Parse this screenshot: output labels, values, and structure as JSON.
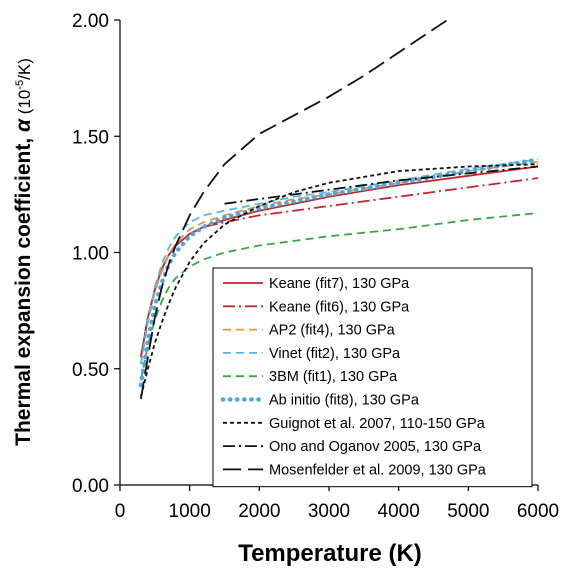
{
  "chart_data": {
    "type": "line",
    "xlabel": "Temperature (K)",
    "ylabel_main": "Thermal expansion coefficient, ",
    "ylabel_alpha": "α",
    "ylabel_unit_prefix": " (10",
    "ylabel_unit_exp": "-5",
    "ylabel_unit_suffix": "/K)",
    "xlim": [
      0,
      6000
    ],
    "ylim": [
      0.0,
      2.0
    ],
    "xticks": [
      0,
      1000,
      2000,
      3000,
      4000,
      5000,
      6000
    ],
    "xtick_labels": [
      "0",
      "1000",
      "2000",
      "3000",
      "4000",
      "5000",
      "6000"
    ],
    "yticks": [
      0.0,
      0.5,
      1.0,
      1.5,
      2.0
    ],
    "ytick_labels": [
      "0.00",
      "0.50",
      "1.00",
      "1.50",
      "2.00"
    ],
    "grid": false,
    "legend_position": "bottom-right",
    "series": [
      {
        "name": "Keane (fit7), 130 GPa",
        "color": "#c0282d",
        "style": "solid",
        "x": [
          300,
          400,
          500,
          600,
          700,
          800,
          1000,
          1200,
          1500,
          2000,
          2500,
          3000,
          4000,
          5000,
          6000
        ],
        "y": [
          0.55,
          0.72,
          0.84,
          0.93,
          0.99,
          1.03,
          1.08,
          1.11,
          1.14,
          1.18,
          1.21,
          1.24,
          1.29,
          1.33,
          1.37
        ]
      },
      {
        "name": "Keane (fit6), 130 GPa",
        "color": "#c0282d",
        "style": "dashdot",
        "x": [
          300,
          400,
          500,
          600,
          700,
          800,
          1000,
          1200,
          1500,
          2000,
          2500,
          3000,
          4000,
          5000,
          6000
        ],
        "y": [
          0.55,
          0.72,
          0.84,
          0.93,
          0.99,
          1.03,
          1.08,
          1.11,
          1.13,
          1.16,
          1.18,
          1.2,
          1.24,
          1.28,
          1.32
        ]
      },
      {
        "name": "AP2 (fit4), 130 GPa",
        "color": "#f0913a",
        "style": "dashed",
        "x": [
          300,
          400,
          500,
          600,
          700,
          800,
          1000,
          1200,
          1500,
          2000,
          2500,
          3000,
          4000,
          5000,
          6000
        ],
        "y": [
          0.52,
          0.7,
          0.83,
          0.92,
          0.99,
          1.04,
          1.1,
          1.13,
          1.16,
          1.2,
          1.23,
          1.25,
          1.3,
          1.35,
          1.39
        ]
      },
      {
        "name": "Vinet (fit2), 130 GPa",
        "color": "#58b6e7",
        "style": "dashed",
        "x": [
          300,
          400,
          500,
          600,
          700,
          800,
          1000,
          1200,
          1500,
          2000,
          2500,
          3000,
          4000,
          5000,
          6000
        ],
        "y": [
          0.52,
          0.71,
          0.85,
          0.95,
          1.02,
          1.07,
          1.13,
          1.16,
          1.18,
          1.21,
          1.24,
          1.26,
          1.31,
          1.36,
          1.4
        ]
      },
      {
        "name": "3BM (fit1), 130 GPa",
        "color": "#3aa648",
        "style": "dashed",
        "x": [
          300,
          400,
          500,
          600,
          700,
          800,
          1000,
          1200,
          1500,
          2000,
          2500,
          3000,
          4000,
          5000,
          6000
        ],
        "y": [
          0.45,
          0.6,
          0.71,
          0.79,
          0.85,
          0.89,
          0.94,
          0.97,
          1.0,
          1.03,
          1.05,
          1.07,
          1.1,
          1.14,
          1.17
        ]
      },
      {
        "name": "Ab initio (fit8), 130 GPa",
        "color": "#4aa8df",
        "style": "dotted",
        "x": [
          300,
          400,
          500,
          600,
          700,
          800,
          1000,
          1200,
          1500,
          2000,
          2500,
          3000,
          4000,
          5000,
          6000
        ],
        "y": [
          0.43,
          0.62,
          0.77,
          0.87,
          0.95,
          1.0,
          1.07,
          1.11,
          1.15,
          1.19,
          1.22,
          1.25,
          1.3,
          1.35,
          1.4
        ]
      },
      {
        "name": "Guignot et al. 2007, 110-150 GPa",
        "color": "#111111",
        "style": "shortdash",
        "x": [
          300,
          400,
          500,
          600,
          700,
          800,
          1000,
          1200,
          1500,
          2000,
          2500,
          3000,
          4000,
          5000,
          6000
        ],
        "y": [
          0.38,
          0.5,
          0.61,
          0.7,
          0.78,
          0.85,
          0.96,
          1.04,
          1.12,
          1.2,
          1.26,
          1.3,
          1.35,
          1.37,
          1.38
        ]
      },
      {
        "name": "Ono and Oganov 2005, 130 GPa",
        "color": "#111111",
        "style": "dashdot",
        "x": [
          1500,
          2000,
          2500,
          3000,
          4000,
          5000,
          6000
        ],
        "y": [
          1.21,
          1.23,
          1.25,
          1.27,
          1.31,
          1.34,
          1.37
        ]
      },
      {
        "name": "Mosenfelder et al. 2009, 130 GPa",
        "color": "#111111",
        "style": "longdash",
        "x": [
          300,
          400,
          500,
          600,
          700,
          800,
          1000,
          1200,
          1500,
          2000,
          2500,
          3000,
          3500,
          4000,
          4500,
          4700
        ],
        "y": [
          0.37,
          0.55,
          0.72,
          0.85,
          0.95,
          1.03,
          1.16,
          1.26,
          1.38,
          1.51,
          1.59,
          1.67,
          1.76,
          1.86,
          1.96,
          2.0
        ]
      }
    ]
  }
}
